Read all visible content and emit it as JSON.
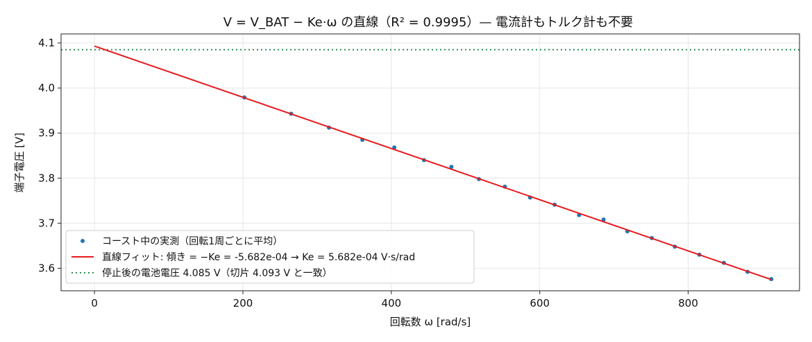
{
  "chart_data": {
    "type": "scatter",
    "title": "V = V_BAT − Ke·ω の直線（R² = 0.9995）— 電流計もトルク計も不要",
    "xlabel": "回転数 ω [rad/s]",
    "ylabel": "端子電圧 [V]",
    "xlim": [
      -45,
      950
    ],
    "ylim": [
      3.55,
      4.12
    ],
    "xticks": [
      0,
      200,
      400,
      600,
      800
    ],
    "yticks": [
      3.6,
      3.7,
      3.8,
      3.9,
      4.0,
      4.1
    ],
    "xtick_labels": [
      "0",
      "200",
      "400",
      "600",
      "800"
    ],
    "ytick_labels": [
      "3.6",
      "3.7",
      "3.8",
      "3.9",
      "4.0",
      "4.1"
    ],
    "grid": true,
    "legend_position": "lower-left",
    "series": [
      {
        "name": "コースト中の実測（回転1周ごとに平均）",
        "kind": "scatter",
        "color": "#1f77b4",
        "x": [
          202,
          265,
          316,
          361,
          404,
          444,
          481,
          518,
          553,
          587,
          620,
          653,
          686,
          718,
          751,
          782,
          815,
          848,
          880,
          912
        ],
        "y": [
          3.979,
          3.943,
          3.912,
          3.885,
          3.868,
          3.84,
          3.825,
          3.798,
          3.781,
          3.757,
          3.741,
          3.718,
          3.708,
          3.682,
          3.667,
          3.648,
          3.63,
          3.612,
          3.592,
          3.576
        ]
      },
      {
        "name": "直線フィット: 傾き = −Ke = -5.682e-04 → Ke = 5.682e-04 V·s/rad",
        "kind": "line",
        "color": "#e8191d",
        "x": [
          0,
          912
        ],
        "y": [
          4.093,
          3.5748
        ]
      },
      {
        "name": "停止後の電池電圧 4.085 V（切片 4.093 V と一致）",
        "kind": "hline",
        "color": "#2e8b57",
        "y": 4.085
      }
    ]
  }
}
